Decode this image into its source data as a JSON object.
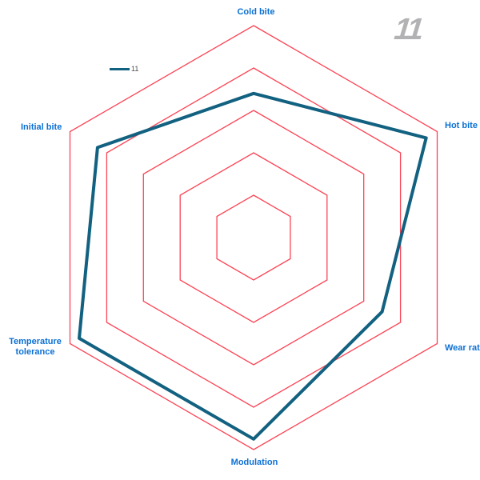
{
  "page": {
    "background": "#ffffff"
  },
  "logo": {
    "text": "11"
  },
  "legend": {
    "series_label": "11"
  },
  "chart_data": {
    "type": "radar",
    "title": "",
    "categories": [
      "Cold bite",
      "Hot bite",
      "Wear rate",
      "Modulation",
      "Temperature tolerance",
      "Initial bite"
    ],
    "series": [
      {
        "name": "11",
        "values": [
          6.8,
          9.4,
          7.0,
          9.5,
          9.5,
          8.5
        ]
      }
    ],
    "axis_range": [
      0,
      10
    ],
    "ring_values": [
      2,
      4,
      6,
      8,
      10
    ],
    "grid": true,
    "spokes": false,
    "shape": "hexagon-pointy-top",
    "grid_color": "#fb4455",
    "series_color": "#126180",
    "label_color": "#0b70d4",
    "legend_position": "upper-left-inside"
  }
}
